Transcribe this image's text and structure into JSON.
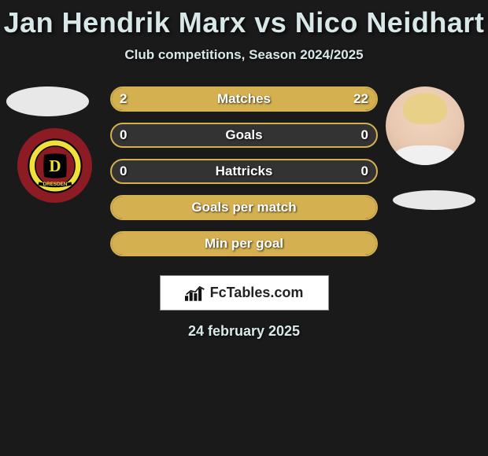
{
  "title": "Jan Hendrik Marx vs Nico Neidhart",
  "subtitle": "Club competitions, Season 2024/2025",
  "date": "24 february 2025",
  "brand": "FcTables.com",
  "colors": {
    "background": "#1a1a1a",
    "bar_fill": "#d4b050",
    "bar_border": "#d4b050",
    "text": "#d8e8e8",
    "title_fontsize": 36,
    "subtitle_fontsize": 17,
    "label_fontsize": 17
  },
  "rows": [
    {
      "label": "Matches",
      "left": "2",
      "right": "22",
      "left_pct": 8,
      "right_pct": 92,
      "show_vals": true
    },
    {
      "label": "Goals",
      "left": "0",
      "right": "0",
      "left_pct": 0,
      "right_pct": 0,
      "show_vals": true
    },
    {
      "label": "Hattricks",
      "left": "0",
      "right": "0",
      "left_pct": 0,
      "right_pct": 0,
      "show_vals": true
    },
    {
      "label": "Goals per match",
      "left": "",
      "right": "",
      "left_pct": 100,
      "right_pct": 0,
      "show_vals": false
    },
    {
      "label": "Min per goal",
      "left": "",
      "right": "",
      "left_pct": 100,
      "right_pct": 0,
      "show_vals": false
    }
  ]
}
